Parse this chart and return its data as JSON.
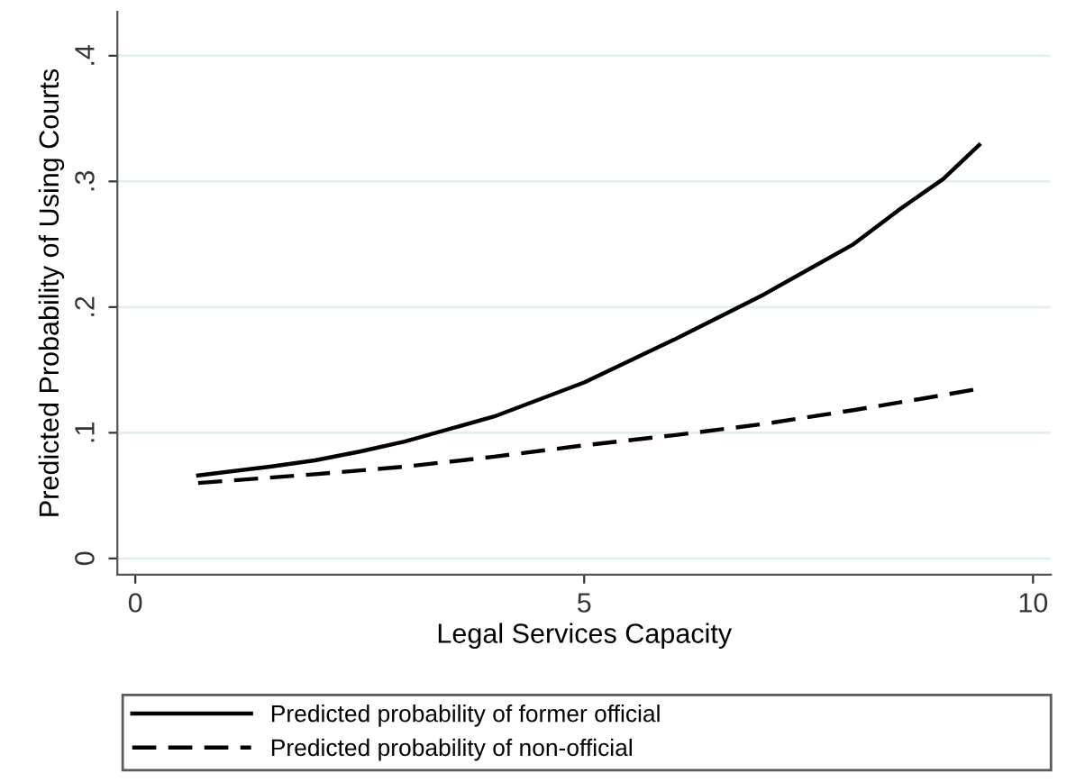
{
  "chart_data": {
    "type": "line",
    "xlabel": "Legal Services Capacity",
    "ylabel": "Predicted Probability of Using Courts",
    "xlim": [
      -0.2,
      10.2
    ],
    "xticks": [
      0,
      5,
      10
    ],
    "ylim": [
      -0.013,
      0.435
    ],
    "yticks": [
      {
        "value": 0,
        "label": "0"
      },
      {
        "value": 0.1,
        "label": ".1"
      },
      {
        "value": 0.2,
        "label": ".2"
      },
      {
        "value": 0.3,
        "label": ".3"
      },
      {
        "value": 0.4,
        "label": ".4"
      }
    ],
    "grid": "y",
    "legend": "bottom",
    "series": [
      {
        "name": "Predicted probability of former official",
        "color": "#000000",
        "line_style": "solid",
        "x": [
          0.7,
          1.5,
          2,
          2.5,
          3,
          4,
          5,
          6,
          7,
          7.5,
          8,
          8.5,
          9,
          9.4
        ],
        "values": [
          0.066,
          0.073,
          0.078,
          0.085,
          0.093,
          0.113,
          0.14,
          0.174,
          0.21,
          0.23,
          0.25,
          0.277,
          0.302,
          0.329
        ]
      },
      {
        "name": "Predicted probability of non-official",
        "color": "#000000",
        "line_style": "dashed",
        "x": [
          0.7,
          2,
          3,
          4,
          5,
          6,
          7,
          8,
          9,
          9.4
        ],
        "values": [
          0.06,
          0.067,
          0.073,
          0.081,
          0.09,
          0.098,
          0.107,
          0.118,
          0.13,
          0.135
        ]
      }
    ]
  }
}
